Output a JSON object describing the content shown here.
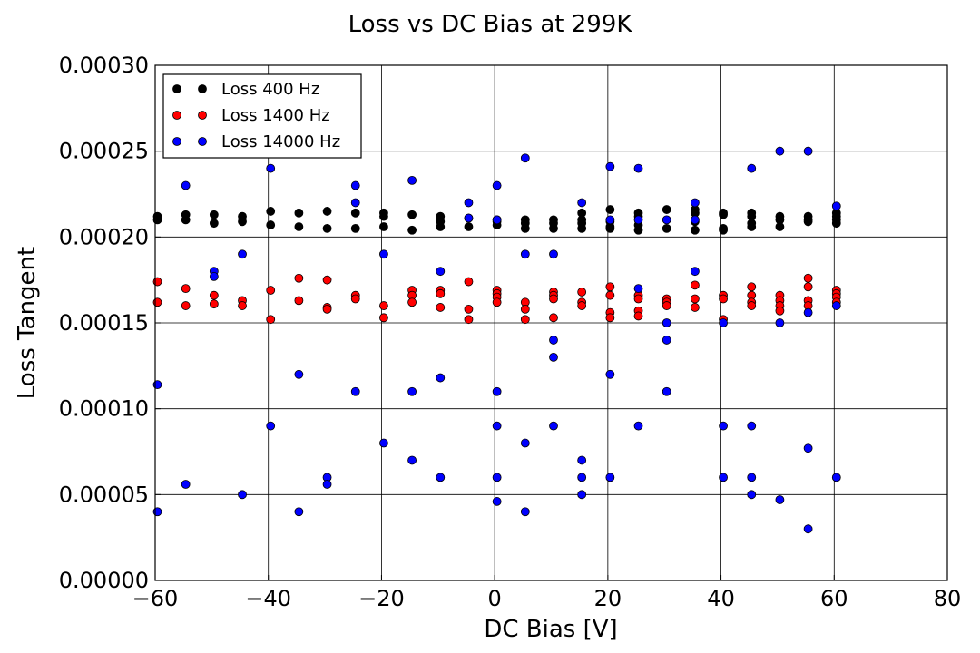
{
  "chart_data": {
    "type": "scatter",
    "title": "Loss vs DC Bias at 299K",
    "xlabel": "DC Bias [V]",
    "ylabel": "Loss Tangent",
    "xlim": [
      -60,
      80
    ],
    "ylim": [
      0,
      0.0003
    ],
    "xticks": [
      -60,
      -40,
      -20,
      0,
      20,
      40,
      60,
      80
    ],
    "xtick_labels": [
      "−60",
      "−40",
      "−20",
      "0",
      "20",
      "40",
      "60",
      "80"
    ],
    "yticks": [
      0,
      5e-05,
      0.0001,
      0.00015,
      0.0002,
      0.00025,
      0.0003
    ],
    "ytick_labels": [
      "0.00000",
      "0.00005",
      "0.00010",
      "0.00015",
      "0.00020",
      "0.00025",
      "0.00030"
    ],
    "grid": true,
    "legend_position": "top-left",
    "series": [
      {
        "name": "Loss 400 Hz",
        "color": "#000000",
        "points": [
          [
            -60,
            0.000212
          ],
          [
            -60,
            0.00021
          ],
          [
            -55,
            0.000213
          ],
          [
            -55,
            0.00021
          ],
          [
            -50,
            0.000213
          ],
          [
            -50,
            0.000208
          ],
          [
            -45,
            0.000212
          ],
          [
            -45,
            0.000209
          ],
          [
            -40,
            0.000215
          ],
          [
            -40,
            0.000207
          ],
          [
            -35,
            0.000214
          ],
          [
            -35,
            0.000206
          ],
          [
            -30,
            0.000215
          ],
          [
            -30,
            0.000205
          ],
          [
            -25,
            0.000214
          ],
          [
            -25,
            0.000205
          ],
          [
            -20,
            0.000214
          ],
          [
            -20,
            0.000212
          ],
          [
            -20,
            0.000206
          ],
          [
            -15,
            0.000213
          ],
          [
            -15,
            0.000204
          ],
          [
            -10,
            0.000212
          ],
          [
            -10,
            0.000209
          ],
          [
            -10,
            0.000206
          ],
          [
            -5,
            0.000211
          ],
          [
            -5,
            0.000206
          ],
          [
            0,
            0.00021
          ],
          [
            0,
            0.000209
          ],
          [
            0,
            0.000207
          ],
          [
            5,
            0.00021
          ],
          [
            5,
            0.000208
          ],
          [
            5,
            0.000205
          ],
          [
            10,
            0.00021
          ],
          [
            10,
            0.000208
          ],
          [
            10,
            0.000205
          ],
          [
            15,
            0.000214
          ],
          [
            15,
            0.00021
          ],
          [
            15,
            0.000208
          ],
          [
            15,
            0.000205
          ],
          [
            20,
            0.000216
          ],
          [
            20,
            0.000209
          ],
          [
            20,
            0.000206
          ],
          [
            20,
            0.000205
          ],
          [
            25,
            0.000214
          ],
          [
            25,
            0.000212
          ],
          [
            25,
            0.000207
          ],
          [
            25,
            0.000204
          ],
          [
            30,
            0.000216
          ],
          [
            30,
            0.000205
          ],
          [
            35,
            0.000216
          ],
          [
            35,
            0.000214
          ],
          [
            35,
            0.000209
          ],
          [
            35,
            0.000204
          ],
          [
            40,
            0.000214
          ],
          [
            40,
            0.000213
          ],
          [
            40,
            0.000205
          ],
          [
            40,
            0.000204
          ],
          [
            45,
            0.000214
          ],
          [
            45,
            0.000212
          ],
          [
            45,
            0.000208
          ],
          [
            45,
            0.000206
          ],
          [
            50,
            0.000212
          ],
          [
            50,
            0.00021
          ],
          [
            50,
            0.000206
          ],
          [
            55,
            0.000212
          ],
          [
            55,
            0.00021
          ],
          [
            55,
            0.000209
          ],
          [
            60,
            0.000214
          ],
          [
            60,
            0.000212
          ],
          [
            60,
            0.00021
          ],
          [
            60,
            0.000208
          ]
        ]
      },
      {
        "name": "Loss 1400 Hz",
        "color": "#ff0000",
        "points": [
          [
            -60,
            0.000174
          ],
          [
            -60,
            0.000162
          ],
          [
            -55,
            0.00017
          ],
          [
            -55,
            0.00016
          ],
          [
            -50,
            0.000166
          ],
          [
            -50,
            0.000161
          ],
          [
            -45,
            0.000163
          ],
          [
            -45,
            0.00016
          ],
          [
            -40,
            0.000169
          ],
          [
            -40,
            0.000152
          ],
          [
            -35,
            0.000176
          ],
          [
            -35,
            0.000163
          ],
          [
            -30,
            0.000175
          ],
          [
            -30,
            0.000159
          ],
          [
            -30,
            0.000158
          ],
          [
            -25,
            0.000166
          ],
          [
            -25,
            0.000164
          ],
          [
            -20,
            0.00016
          ],
          [
            -20,
            0.000153
          ],
          [
            -15,
            0.000169
          ],
          [
            -15,
            0.000166
          ],
          [
            -15,
            0.000162
          ],
          [
            -10,
            0.000169
          ],
          [
            -10,
            0.000167
          ],
          [
            -10,
            0.000159
          ],
          [
            -5,
            0.000174
          ],
          [
            -5,
            0.000158
          ],
          [
            -5,
            0.000152
          ],
          [
            0,
            0.000169
          ],
          [
            0,
            0.000167
          ],
          [
            0,
            0.000165
          ],
          [
            0,
            0.000162
          ],
          [
            5,
            0.000162
          ],
          [
            5,
            0.000158
          ],
          [
            5,
            0.000152
          ],
          [
            10,
            0.000168
          ],
          [
            10,
            0.000166
          ],
          [
            10,
            0.000164
          ],
          [
            10,
            0.000153
          ],
          [
            15,
            0.000168
          ],
          [
            15,
            0.000162
          ],
          [
            15,
            0.00016
          ],
          [
            20,
            0.000171
          ],
          [
            20,
            0.000166
          ],
          [
            20,
            0.000156
          ],
          [
            20,
            0.000153
          ],
          [
            25,
            0.000166
          ],
          [
            25,
            0.000164
          ],
          [
            25,
            0.000157
          ],
          [
            25,
            0.000154
          ],
          [
            30,
            0.000164
          ],
          [
            30,
            0.000162
          ],
          [
            30,
            0.00016
          ],
          [
            35,
            0.000172
          ],
          [
            35,
            0.000164
          ],
          [
            35,
            0.000159
          ],
          [
            40,
            0.000166
          ],
          [
            40,
            0.000164
          ],
          [
            40,
            0.000152
          ],
          [
            45,
            0.000171
          ],
          [
            45,
            0.000166
          ],
          [
            45,
            0.000162
          ],
          [
            45,
            0.00016
          ],
          [
            50,
            0.000166
          ],
          [
            50,
            0.000163
          ],
          [
            50,
            0.00016
          ],
          [
            50,
            0.000157
          ],
          [
            55,
            0.000176
          ],
          [
            55,
            0.000171
          ],
          [
            55,
            0.000163
          ],
          [
            55,
            0.00016
          ],
          [
            60,
            0.000169
          ],
          [
            60,
            0.000167
          ],
          [
            60,
            0.000165
          ],
          [
            60,
            0.000162
          ]
        ]
      },
      {
        "name": "Loss 14000 Hz",
        "color": "#0000ff",
        "points": [
          [
            -60,
            0.000114
          ],
          [
            -60,
            4e-05
          ],
          [
            -55,
            0.00023
          ],
          [
            -55,
            5.6e-05
          ],
          [
            -50,
            0.00018
          ],
          [
            -50,
            0.000177
          ],
          [
            -45,
            0.00019
          ],
          [
            -45,
            5e-05
          ],
          [
            -40,
            0.00024
          ],
          [
            -40,
            9e-05
          ],
          [
            -35,
            0.00012
          ],
          [
            -35,
            4e-05
          ],
          [
            -30,
            6e-05
          ],
          [
            -30,
            5.6e-05
          ],
          [
            -25,
            0.00023
          ],
          [
            -25,
            0.00022
          ],
          [
            -25,
            0.00011
          ],
          [
            -20,
            0.00019
          ],
          [
            -20,
            8e-05
          ],
          [
            -15,
            0.000233
          ],
          [
            -15,
            0.00011
          ],
          [
            -15,
            7e-05
          ],
          [
            -10,
            0.00018
          ],
          [
            -10,
            0.000118
          ],
          [
            -10,
            6e-05
          ],
          [
            -5,
            0.00022
          ],
          [
            -5,
            0.000211
          ],
          [
            0,
            0.00023
          ],
          [
            0,
            0.00021
          ],
          [
            0,
            0.00011
          ],
          [
            0,
            9e-05
          ],
          [
            0,
            6e-05
          ],
          [
            0,
            4.6e-05
          ],
          [
            5,
            0.000246
          ],
          [
            5,
            0.00019
          ],
          [
            5,
            8e-05
          ],
          [
            5,
            4e-05
          ],
          [
            10,
            0.00019
          ],
          [
            10,
            0.00014
          ],
          [
            10,
            0.00013
          ],
          [
            10,
            9e-05
          ],
          [
            15,
            0.00022
          ],
          [
            15,
            7e-05
          ],
          [
            15,
            6e-05
          ],
          [
            15,
            5e-05
          ],
          [
            20,
            0.000241
          ],
          [
            20,
            0.00021
          ],
          [
            20,
            0.00012
          ],
          [
            20,
            6e-05
          ],
          [
            25,
            0.00024
          ],
          [
            25,
            0.00021
          ],
          [
            25,
            0.00017
          ],
          [
            25,
            9e-05
          ],
          [
            30,
            0.00021
          ],
          [
            30,
            0.00015
          ],
          [
            30,
            0.00014
          ],
          [
            30,
            0.00011
          ],
          [
            35,
            0.00022
          ],
          [
            35,
            0.00021
          ],
          [
            35,
            0.00018
          ],
          [
            40,
            0.00015
          ],
          [
            40,
            9e-05
          ],
          [
            40,
            6e-05
          ],
          [
            45,
            0.00024
          ],
          [
            45,
            9e-05
          ],
          [
            45,
            6e-05
          ],
          [
            45,
            5e-05
          ],
          [
            50,
            0.00025
          ],
          [
            50,
            0.00015
          ],
          [
            50,
            4.7e-05
          ],
          [
            55,
            0.00025
          ],
          [
            55,
            0.000156
          ],
          [
            55,
            7.7e-05
          ],
          [
            55,
            3e-05
          ],
          [
            60,
            0.000218
          ],
          [
            60,
            0.00016
          ],
          [
            60,
            6e-05
          ]
        ]
      }
    ]
  }
}
